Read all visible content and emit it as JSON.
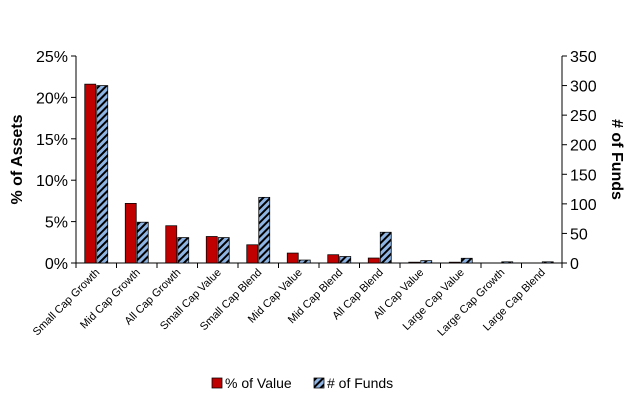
{
  "chart_data": {
    "type": "bar",
    "categories": [
      "Small Cap Growth",
      "Mid Cap Growth",
      "All Cap Growth",
      "Small Cap Value",
      "Small Cap Blend",
      "Mid Cap Value",
      "Mid Cap Blend",
      "All Cap Blend",
      "All Cap Value",
      "Large Cap Value",
      "Large Cap Growth",
      "Large Cap Blend"
    ],
    "series": [
      {
        "name": "% of Value",
        "axis": "left",
        "color": "#c00000",
        "pattern": "solid",
        "values": [
          21.6,
          7.2,
          4.5,
          3.2,
          2.2,
          1.2,
          1.0,
          0.6,
          0.1,
          0.1,
          0.0,
          0.0
        ]
      },
      {
        "name": "# of Funds",
        "axis": "right",
        "color": "#8eb4e3",
        "pattern": "diagonal-hatch",
        "values": [
          300,
          69,
          43,
          43,
          111,
          5,
          11,
          52,
          4,
          8,
          2,
          2
        ]
      }
    ],
    "left_axis": {
      "label": "% of Assets",
      "range": [
        0,
        25
      ],
      "ticks": [
        "0%",
        "5%",
        "10%",
        "15%",
        "20%",
        "25%"
      ]
    },
    "right_axis": {
      "label": "# of Funds",
      "range": [
        0,
        350
      ],
      "ticks": [
        "0",
        "50",
        "100",
        "150",
        "200",
        "250",
        "300",
        "350"
      ]
    },
    "legend_position": "bottom",
    "grid": false
  }
}
